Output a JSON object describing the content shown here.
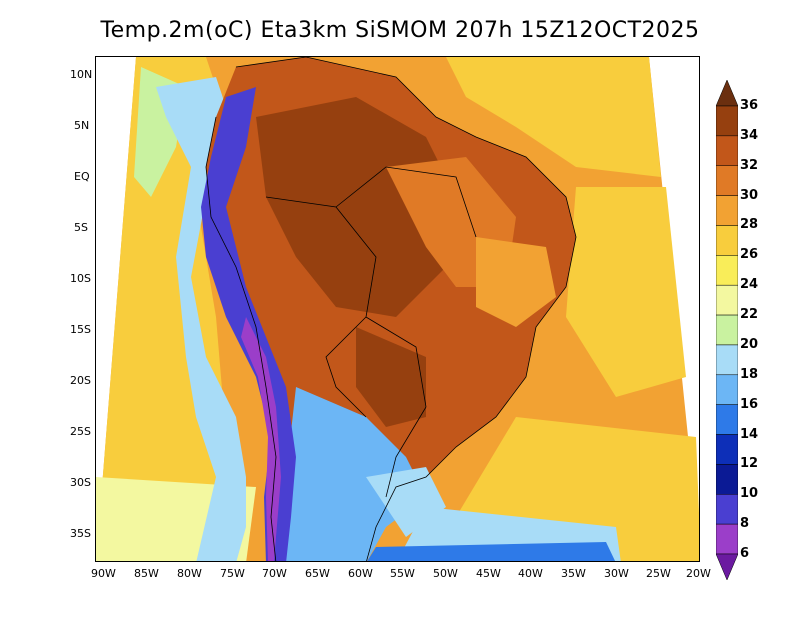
{
  "title": "Temp.2m(oC) Eta3km SiSMOM 207h 15Z12OCT2025",
  "lat_labels": [
    "10N",
    "5N",
    "EQ",
    "5S",
    "10S",
    "15S",
    "20S",
    "25S",
    "30S",
    "35S"
  ],
  "lon_labels": [
    "90W",
    "85W",
    "80W",
    "75W",
    "70W",
    "65W",
    "60W",
    "55W",
    "50W",
    "45W",
    "40W",
    "35W",
    "30W",
    "25W",
    "20W"
  ],
  "colorbar": {
    "labels": [
      "36",
      "34",
      "32",
      "30",
      "28",
      "26",
      "24",
      "22",
      "20",
      "18",
      "16",
      "14",
      "12",
      "10",
      "8",
      "6"
    ],
    "colors": [
      "#6b2f0f",
      "#96400f",
      "#c2571a",
      "#e07a26",
      "#f2a233",
      "#f8cd3d",
      "#f9ed59",
      "#f3f8a0",
      "#c9f2a0",
      "#a8dcf7",
      "#6cb6f5",
      "#2e7ae8",
      "#0d2fb8",
      "#0b1a95",
      "#4a3fd1",
      "#9b3ec9",
      "#6b1aa0"
    ]
  }
}
